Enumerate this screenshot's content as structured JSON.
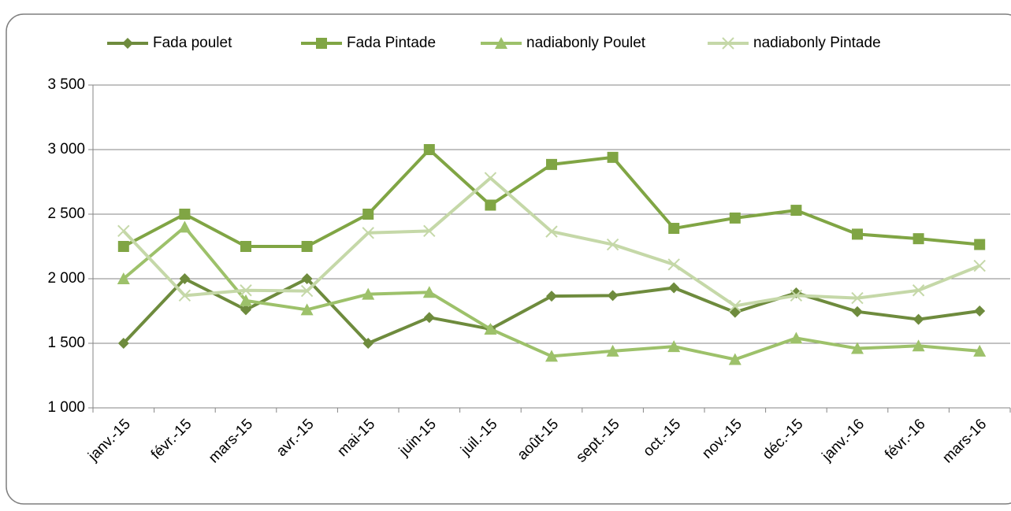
{
  "chart_data": {
    "type": "line",
    "categories": [
      "janv.-15",
      "févr.-15",
      "mars-15",
      "avr.-15",
      "mai-15",
      "juin-15",
      "juil.-15",
      "août-15",
      "sept.-15",
      "oct.-15",
      "nov.-15",
      "déc.-15",
      "janv.-16",
      "févr.-16",
      "mars-16"
    ],
    "series": [
      {
        "name": "Fada poulet",
        "color": "#6e8b3d",
        "marker": "diamond",
        "values": [
          1500,
          2000,
          1760,
          2000,
          1500,
          1700,
          1610,
          1865,
          1870,
          1930,
          1740,
          1890,
          1745,
          1685,
          1750
        ]
      },
      {
        "name": "Fada Pintade",
        "color": "#80a544",
        "marker": "square",
        "values": [
          2250,
          2500,
          2250,
          2250,
          2500,
          3000,
          2570,
          2885,
          2940,
          2390,
          2470,
          2530,
          2345,
          2310,
          2265
        ]
      },
      {
        "name": "nadiabonly Poulet",
        "color": "#9dc16a",
        "marker": "triangle",
        "values": [
          2000,
          2400,
          1830,
          1760,
          1880,
          1895,
          1610,
          1400,
          1440,
          1475,
          1375,
          1540,
          1460,
          1480,
          1440
        ]
      },
      {
        "name": "nadiabonly Pintade",
        "color": "#c5d8a8",
        "marker": "x",
        "values": [
          2370,
          1870,
          1910,
          1905,
          2355,
          2370,
          2780,
          2365,
          2265,
          2110,
          1790,
          1870,
          1850,
          1910,
          2100
        ]
      }
    ],
    "ylim": [
      1000,
      3500
    ],
    "yticks": [
      {
        "value": 1000,
        "label": "1 000"
      },
      {
        "value": 1500,
        "label": "1 500"
      },
      {
        "value": 2000,
        "label": "2 000"
      },
      {
        "value": 2500,
        "label": "2 500"
      },
      {
        "value": 3000,
        "label": "3 000"
      },
      {
        "value": 3500,
        "label": "3 500"
      }
    ],
    "grid": true,
    "legend": "top"
  }
}
